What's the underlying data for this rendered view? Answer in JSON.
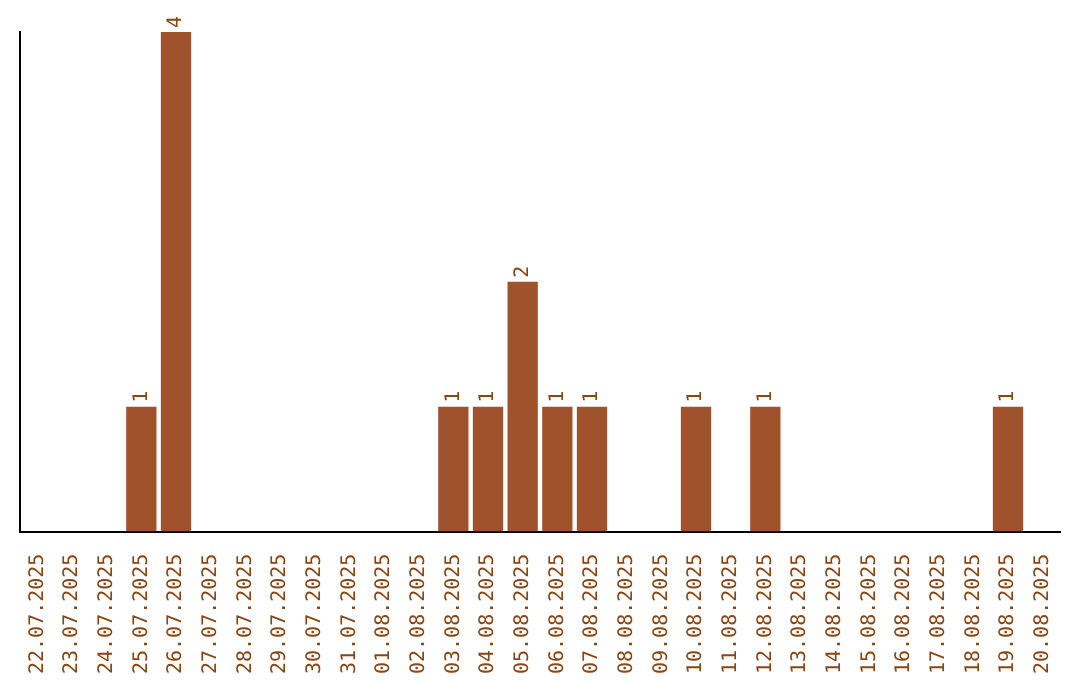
{
  "chart_data": {
    "type": "bar",
    "categories": [
      "22.07.2025",
      "23.07.2025",
      "24.07.2025",
      "25.07.2025",
      "26.07.2025",
      "27.07.2025",
      "28.07.2025",
      "29.07.2025",
      "30.07.2025",
      "31.07.2025",
      "01.08.2025",
      "02.08.2025",
      "03.08.2025",
      "04.08.2025",
      "05.08.2025",
      "06.08.2025",
      "07.08.2025",
      "08.08.2025",
      "09.08.2025",
      "10.08.2025",
      "11.08.2025",
      "12.08.2025",
      "13.08.2025",
      "14.08.2025",
      "15.08.2025",
      "16.08.2025",
      "17.08.2025",
      "18.08.2025",
      "19.08.2025",
      "20.08.2025"
    ],
    "values": [
      0,
      0,
      0,
      1,
      4,
      0,
      0,
      0,
      0,
      0,
      0,
      0,
      1,
      1,
      2,
      1,
      1,
      0,
      0,
      1,
      0,
      1,
      0,
      0,
      0,
      0,
      0,
      0,
      1,
      0
    ],
    "value_labels": [
      null,
      null,
      null,
      "1",
      "4",
      null,
      null,
      null,
      null,
      null,
      null,
      null,
      "1",
      "1",
      "2",
      "1",
      "1",
      null,
      null,
      "1",
      null,
      "1",
      null,
      null,
      null,
      null,
      null,
      null,
      "1",
      null
    ],
    "color": "#a0522d",
    "ylim": [
      0,
      4
    ],
    "tick_labels": "x",
    "grid": false,
    "legend": false
  }
}
